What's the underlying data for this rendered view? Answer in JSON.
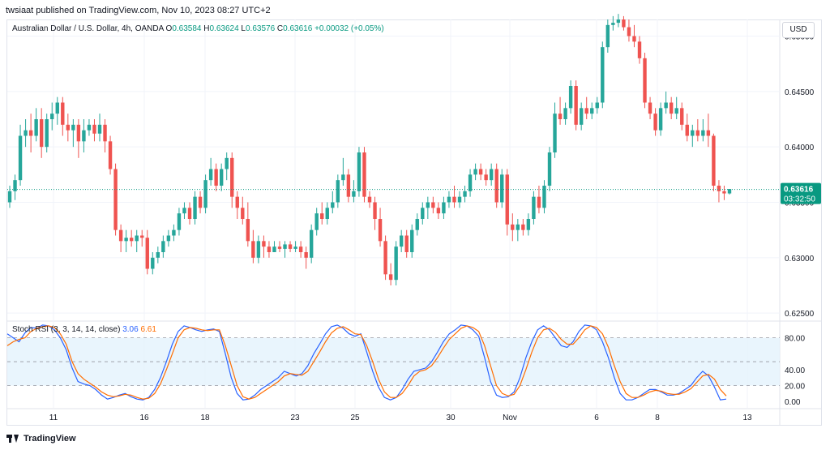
{
  "header": {
    "published_by": "twsiaat published on TradingView.com, Nov 10, 2023 08:27 UTC+2"
  },
  "legend": {
    "symbol": "Australian Dollar / U.S. Dollar, 4h, OANDA",
    "o_label": "O",
    "o_value": "0.63584",
    "h_label": "H",
    "h_value": "0.63624",
    "l_label": "L",
    "l_value": "0.63576",
    "c_label": "C",
    "c_value": "0.63616",
    "change": "+0.00032 (+0.05%)"
  },
  "currency_button": "USD",
  "last_price": {
    "price": "0.63616",
    "countdown": "03:32:50"
  },
  "stoch_legend": {
    "name": "Stoch RSI (3, 3, 14, 14, close)",
    "k_value": "3.06",
    "d_value": "6.61"
  },
  "footer": {
    "brand": "TradingView"
  },
  "colors": {
    "up": "#26a69a",
    "down": "#ef5350",
    "k_line": "#2962ff",
    "d_line": "#ff6d00",
    "band_fill": "#e3f2fd",
    "last_price_bg": "#089981"
  },
  "chart_data": [
    {
      "type": "candlestick",
      "title": "Australian Dollar / U.S. Dollar, 4h, OANDA",
      "ylim": [
        0.6245,
        0.6515
      ],
      "y_ticks": [
        "0.62500",
        "0.63000",
        "0.63500",
        "0.64000",
        "0.64500",
        "0.65000"
      ],
      "y_tick_values": [
        0.625,
        0.63,
        0.635,
        0.64,
        0.645,
        0.65
      ],
      "x_ticks": [
        "11",
        "16",
        "18",
        "23",
        "25",
        "30",
        "Nov",
        "6",
        "8",
        "13"
      ],
      "last_price": 0.63616,
      "candles_ohlc": [
        [
          0.635,
          0.6365,
          0.6345,
          0.636
        ],
        [
          0.636,
          0.6375,
          0.6352,
          0.637
        ],
        [
          0.637,
          0.642,
          0.6365,
          0.641
        ],
        [
          0.641,
          0.6425,
          0.64,
          0.6415
        ],
        [
          0.6415,
          0.643,
          0.6395,
          0.641
        ],
        [
          0.641,
          0.6435,
          0.6405,
          0.6425
        ],
        [
          0.6425,
          0.6435,
          0.639,
          0.64
        ],
        [
          0.64,
          0.643,
          0.6395,
          0.6425
        ],
        [
          0.6425,
          0.644,
          0.6415,
          0.643
        ],
        [
          0.643,
          0.6445,
          0.642,
          0.644
        ],
        [
          0.644,
          0.6445,
          0.641,
          0.642
        ],
        [
          0.642,
          0.643,
          0.6405,
          0.6415
        ],
        [
          0.6415,
          0.6425,
          0.64,
          0.642
        ],
        [
          0.642,
          0.6425,
          0.639,
          0.6405
        ],
        [
          0.6405,
          0.6425,
          0.6395,
          0.6415
        ],
        [
          0.6415,
          0.6425,
          0.641,
          0.642
        ],
        [
          0.642,
          0.6425,
          0.6405,
          0.6412
        ],
        [
          0.6412,
          0.643,
          0.6405,
          0.642
        ],
        [
          0.642,
          0.6425,
          0.6395,
          0.6405
        ],
        [
          0.6405,
          0.641,
          0.6375,
          0.638
        ],
        [
          0.638,
          0.6385,
          0.632,
          0.6325
        ],
        [
          0.6325,
          0.633,
          0.6305,
          0.6315
        ],
        [
          0.6315,
          0.6325,
          0.6305,
          0.6318
        ],
        [
          0.6318,
          0.6325,
          0.631,
          0.6315
        ],
        [
          0.6315,
          0.6325,
          0.6305,
          0.632
        ],
        [
          0.632,
          0.6325,
          0.631,
          0.6318
        ],
        [
          0.6318,
          0.6325,
          0.6285,
          0.629
        ],
        [
          0.629,
          0.6305,
          0.6285,
          0.63
        ],
        [
          0.63,
          0.631,
          0.6295,
          0.6305
        ],
        [
          0.6305,
          0.632,
          0.63,
          0.6315
        ],
        [
          0.6315,
          0.6325,
          0.631,
          0.632
        ],
        [
          0.632,
          0.633,
          0.6315,
          0.6325
        ],
        [
          0.6325,
          0.6345,
          0.632,
          0.634
        ],
        [
          0.634,
          0.635,
          0.6335,
          0.6345
        ],
        [
          0.6345,
          0.635,
          0.633,
          0.6335
        ],
        [
          0.6335,
          0.636,
          0.633,
          0.6355
        ],
        [
          0.6355,
          0.636,
          0.634,
          0.6345
        ],
        [
          0.6345,
          0.6375,
          0.634,
          0.637
        ],
        [
          0.637,
          0.639,
          0.6365,
          0.638
        ],
        [
          0.638,
          0.6385,
          0.636,
          0.6365
        ],
        [
          0.6365,
          0.6385,
          0.636,
          0.638
        ],
        [
          0.638,
          0.6395,
          0.637,
          0.639
        ],
        [
          0.639,
          0.6395,
          0.6345,
          0.6355
        ],
        [
          0.6355,
          0.636,
          0.6335,
          0.6345
        ],
        [
          0.6345,
          0.6355,
          0.633,
          0.6335
        ],
        [
          0.6335,
          0.635,
          0.631,
          0.6315
        ],
        [
          0.6315,
          0.6325,
          0.6295,
          0.63
        ],
        [
          0.63,
          0.632,
          0.6295,
          0.6315
        ],
        [
          0.6315,
          0.632,
          0.63,
          0.631
        ],
        [
          0.631,
          0.6315,
          0.63,
          0.6305
        ],
        [
          0.6305,
          0.6315,
          0.6305,
          0.631
        ],
        [
          0.631,
          0.6315,
          0.6305,
          0.6308
        ],
        [
          0.6308,
          0.6315,
          0.63,
          0.6312
        ],
        [
          0.6312,
          0.6315,
          0.6305,
          0.6308
        ],
        [
          0.6308,
          0.6315,
          0.6305,
          0.631
        ],
        [
          0.631,
          0.6315,
          0.63,
          0.6305
        ],
        [
          0.6305,
          0.631,
          0.629,
          0.63
        ],
        [
          0.63,
          0.633,
          0.6295,
          0.6325
        ],
        [
          0.6325,
          0.6345,
          0.632,
          0.634
        ],
        [
          0.634,
          0.635,
          0.633,
          0.6335
        ],
        [
          0.6335,
          0.635,
          0.633,
          0.6345
        ],
        [
          0.6345,
          0.636,
          0.634,
          0.635
        ],
        [
          0.635,
          0.6375,
          0.6345,
          0.637
        ],
        [
          0.637,
          0.639,
          0.6365,
          0.6375
        ],
        [
          0.6375,
          0.638,
          0.635,
          0.6355
        ],
        [
          0.6355,
          0.637,
          0.635,
          0.636
        ],
        [
          0.636,
          0.64,
          0.6355,
          0.6395
        ],
        [
          0.6395,
          0.64,
          0.635,
          0.6355
        ],
        [
          0.6355,
          0.636,
          0.6345,
          0.635
        ],
        [
          0.635,
          0.6355,
          0.6325,
          0.6335
        ],
        [
          0.6335,
          0.6345,
          0.631,
          0.6315
        ],
        [
          0.6315,
          0.632,
          0.628,
          0.6285
        ],
        [
          0.6285,
          0.6295,
          0.6275,
          0.628
        ],
        [
          0.628,
          0.6315,
          0.6275,
          0.631
        ],
        [
          0.631,
          0.6325,
          0.6305,
          0.632
        ],
        [
          0.632,
          0.6325,
          0.63,
          0.6305
        ],
        [
          0.6305,
          0.633,
          0.63,
          0.6325
        ],
        [
          0.6325,
          0.634,
          0.632,
          0.6335
        ],
        [
          0.6335,
          0.635,
          0.633,
          0.6345
        ],
        [
          0.6345,
          0.6355,
          0.6335,
          0.635
        ],
        [
          0.635,
          0.6355,
          0.634,
          0.6345
        ],
        [
          0.6345,
          0.635,
          0.6335,
          0.634
        ],
        [
          0.634,
          0.6355,
          0.6335,
          0.635
        ],
        [
          0.635,
          0.636,
          0.6345,
          0.6355
        ],
        [
          0.6355,
          0.6365,
          0.6345,
          0.635
        ],
        [
          0.635,
          0.636,
          0.6345,
          0.6355
        ],
        [
          0.6355,
          0.6365,
          0.635,
          0.636
        ],
        [
          0.636,
          0.638,
          0.6355,
          0.6375
        ],
        [
          0.6375,
          0.6385,
          0.637,
          0.638
        ],
        [
          0.638,
          0.6385,
          0.637,
          0.6375
        ],
        [
          0.6375,
          0.638,
          0.6365,
          0.637
        ],
        [
          0.637,
          0.6385,
          0.6365,
          0.638
        ],
        [
          0.638,
          0.6385,
          0.6345,
          0.635
        ],
        [
          0.635,
          0.638,
          0.6345,
          0.6375
        ],
        [
          0.6375,
          0.638,
          0.632,
          0.633
        ],
        [
          0.633,
          0.634,
          0.6315,
          0.6325
        ],
        [
          0.6325,
          0.6335,
          0.6315,
          0.633
        ],
        [
          0.633,
          0.6335,
          0.632,
          0.6325
        ],
        [
          0.6325,
          0.634,
          0.632,
          0.6335
        ],
        [
          0.6335,
          0.636,
          0.633,
          0.6355
        ],
        [
          0.6355,
          0.6365,
          0.634,
          0.6345
        ],
        [
          0.6345,
          0.637,
          0.634,
          0.6365
        ],
        [
          0.6365,
          0.64,
          0.636,
          0.6395
        ],
        [
          0.6395,
          0.644,
          0.639,
          0.643
        ],
        [
          0.643,
          0.6445,
          0.642,
          0.6425
        ],
        [
          0.6425,
          0.644,
          0.642,
          0.6435
        ],
        [
          0.6435,
          0.646,
          0.643,
          0.6455
        ],
        [
          0.6455,
          0.646,
          0.6415,
          0.642
        ],
        [
          0.642,
          0.644,
          0.6415,
          0.6435
        ],
        [
          0.6435,
          0.6445,
          0.6425,
          0.643
        ],
        [
          0.643,
          0.644,
          0.6425,
          0.6435
        ],
        [
          0.6435,
          0.6445,
          0.643,
          0.644
        ],
        [
          0.644,
          0.6495,
          0.6435,
          0.649
        ],
        [
          0.649,
          0.6515,
          0.6485,
          0.651
        ],
        [
          0.651,
          0.6518,
          0.6505,
          0.6512
        ],
        [
          0.6512,
          0.652,
          0.6508,
          0.6515
        ],
        [
          0.6515,
          0.6518,
          0.6505,
          0.6508
        ],
        [
          0.6508,
          0.6515,
          0.6495,
          0.65
        ],
        [
          0.65,
          0.651,
          0.649,
          0.6495
        ],
        [
          0.6495,
          0.65,
          0.6475,
          0.648
        ],
        [
          0.648,
          0.6485,
          0.6435,
          0.644
        ],
        [
          0.644,
          0.6445,
          0.6425,
          0.643
        ],
        [
          0.643,
          0.6435,
          0.641,
          0.6415
        ],
        [
          0.6415,
          0.644,
          0.641,
          0.6435
        ],
        [
          0.6435,
          0.645,
          0.643,
          0.644
        ],
        [
          0.644,
          0.6445,
          0.6425,
          0.643
        ],
        [
          0.643,
          0.6445,
          0.6425,
          0.6435
        ],
        [
          0.6435,
          0.644,
          0.6415,
          0.642
        ],
        [
          0.642,
          0.643,
          0.6405,
          0.641
        ],
        [
          0.641,
          0.642,
          0.64,
          0.6415
        ],
        [
          0.6415,
          0.6425,
          0.6405,
          0.641
        ],
        [
          0.641,
          0.6425,
          0.6405,
          0.6415
        ],
        [
          0.6415,
          0.643,
          0.64,
          0.641
        ],
        [
          0.641,
          0.6412,
          0.636,
          0.6365
        ],
        [
          0.6365,
          0.637,
          0.635,
          0.636
        ],
        [
          0.636,
          0.6365,
          0.6352,
          0.6358
        ],
        [
          0.6358,
          0.6362,
          0.6357,
          0.6362
        ]
      ]
    },
    {
      "type": "line",
      "title": "Stoch RSI (3, 3, 14, 14, close)",
      "ylim": [
        -8,
        100
      ],
      "y_ticks": [
        "0.00",
        "20.00",
        "40.00",
        "80.00"
      ],
      "y_tick_values": [
        0,
        20,
        40,
        80
      ],
      "band": [
        20,
        80
      ],
      "series": [
        {
          "name": "K",
          "values": [
            85,
            80,
            75,
            86,
            93,
            92,
            96,
            95,
            90,
            80,
            65,
            42,
            25,
            22,
            20,
            15,
            8,
            3,
            5,
            8,
            10,
            6,
            3,
            2,
            5,
            15,
            30,
            50,
            72,
            88,
            95,
            93,
            90,
            88,
            90,
            91,
            88,
            60,
            30,
            10,
            2,
            3,
            8,
            15,
            20,
            25,
            30,
            38,
            35,
            32,
            35,
            45,
            60,
            72,
            85,
            94,
            96,
            92,
            85,
            82,
            85,
            62,
            38,
            18,
            5,
            2,
            5,
            15,
            28,
            38,
            40,
            42,
            50,
            62,
            75,
            85,
            90,
            96,
            95,
            90,
            82,
            55,
            25,
            8,
            5,
            6,
            12,
            30,
            55,
            75,
            90,
            95,
            90,
            80,
            70,
            68,
            75,
            88,
            96,
            95,
            90,
            75,
            55,
            30,
            10,
            2,
            2,
            5,
            10,
            15,
            15,
            12,
            8,
            8,
            10,
            15,
            20,
            30,
            38,
            32,
            18,
            2,
            3
          ]
        },
        {
          "name": "D",
          "values": [
            70,
            75,
            78,
            80,
            88,
            92,
            94,
            95,
            93,
            85,
            72,
            50,
            35,
            28,
            23,
            18,
            12,
            8,
            6,
            7,
            9,
            8,
            5,
            3,
            4,
            10,
            22,
            40,
            60,
            80,
            90,
            93,
            92,
            90,
            89,
            90,
            90,
            70,
            45,
            20,
            6,
            3,
            5,
            10,
            15,
            20,
            25,
            32,
            35,
            34,
            33,
            38,
            50,
            62,
            75,
            86,
            92,
            94,
            90,
            85,
            84,
            70,
            50,
            28,
            12,
            5,
            5,
            10,
            20,
            32,
            38,
            40,
            45,
            55,
            67,
            78,
            85,
            92,
            95,
            93,
            88,
            70,
            45,
            20,
            10,
            7,
            9,
            20,
            40,
            62,
            80,
            90,
            92,
            87,
            78,
            72,
            72,
            80,
            90,
            95,
            93,
            85,
            68,
            45,
            25,
            10,
            5,
            5,
            8,
            12,
            14,
            13,
            10,
            9,
            9,
            12,
            16,
            24,
            32,
            34,
            28,
            15,
            7
          ]
        }
      ]
    }
  ]
}
